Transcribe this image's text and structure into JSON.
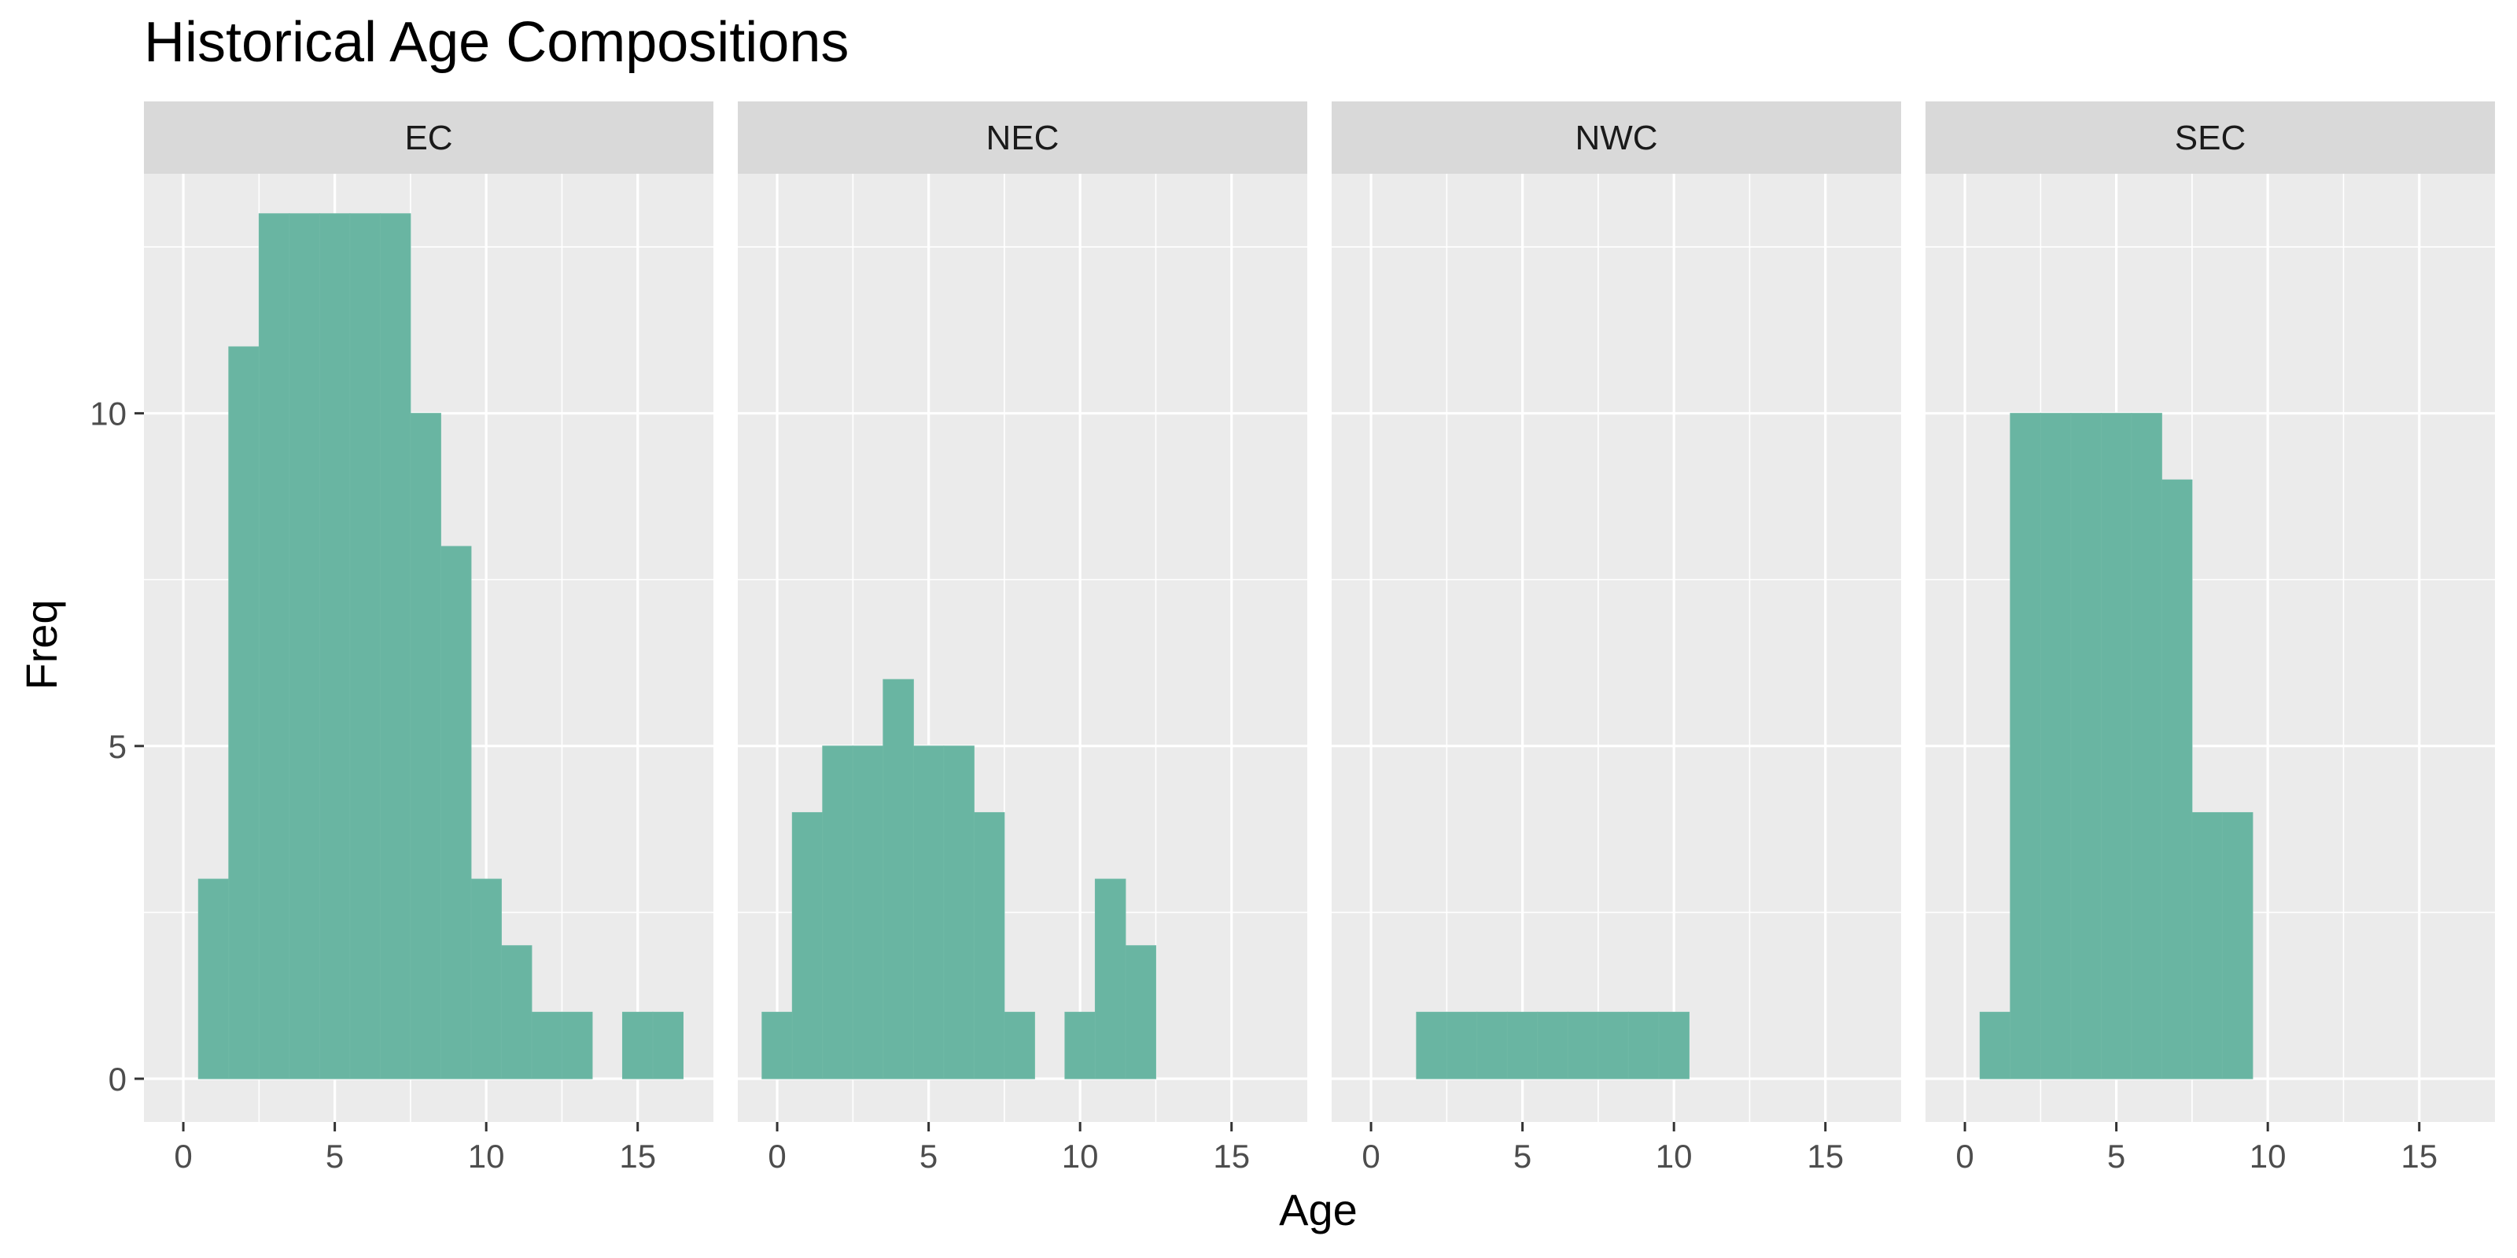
{
  "chart_data": {
    "type": "bar",
    "title": "Historical Age Compositions",
    "xlabel": "Age",
    "ylabel": "Freq",
    "xlim": [
      -1.3,
      17.5
    ],
    "ylim": [
      -0.65,
      13.6
    ],
    "xticks": [
      0,
      5,
      10,
      15
    ],
    "yticks": [
      0,
      5,
      10
    ],
    "grid": true,
    "legend": "none",
    "colors": {
      "bar": "#69b5a2",
      "panel_background": "#ebebeb",
      "strip_background": "#d9d9d9",
      "grid": "#ffffff"
    },
    "panels": [
      {
        "name": "EC",
        "x": [
          1,
          2,
          3,
          4,
          5,
          6,
          7,
          8,
          9,
          10,
          11,
          12,
          13,
          14,
          15,
          16
        ],
        "values": [
          3,
          11,
          13,
          13,
          13,
          13,
          13,
          10,
          8,
          3,
          2,
          1,
          1,
          0,
          1,
          1
        ]
      },
      {
        "name": "NEC",
        "x": [
          0,
          1,
          2,
          3,
          4,
          5,
          6,
          7,
          8,
          9,
          10,
          11,
          12,
          13
        ],
        "values": [
          1,
          4,
          5,
          5,
          6,
          5,
          5,
          4,
          1,
          0,
          1,
          3,
          2,
          0
        ]
      },
      {
        "name": "NWC",
        "x": [
          2,
          3,
          4,
          5,
          6,
          7,
          8,
          9,
          10
        ],
        "values": [
          1,
          1,
          1,
          1,
          1,
          1,
          1,
          1,
          1
        ]
      },
      {
        "name": "SEC",
        "x": [
          1,
          2,
          3,
          4,
          5,
          6,
          7,
          8,
          9,
          10
        ],
        "values": [
          1,
          10,
          10,
          10,
          10,
          10,
          9,
          4,
          4,
          0
        ]
      }
    ]
  }
}
